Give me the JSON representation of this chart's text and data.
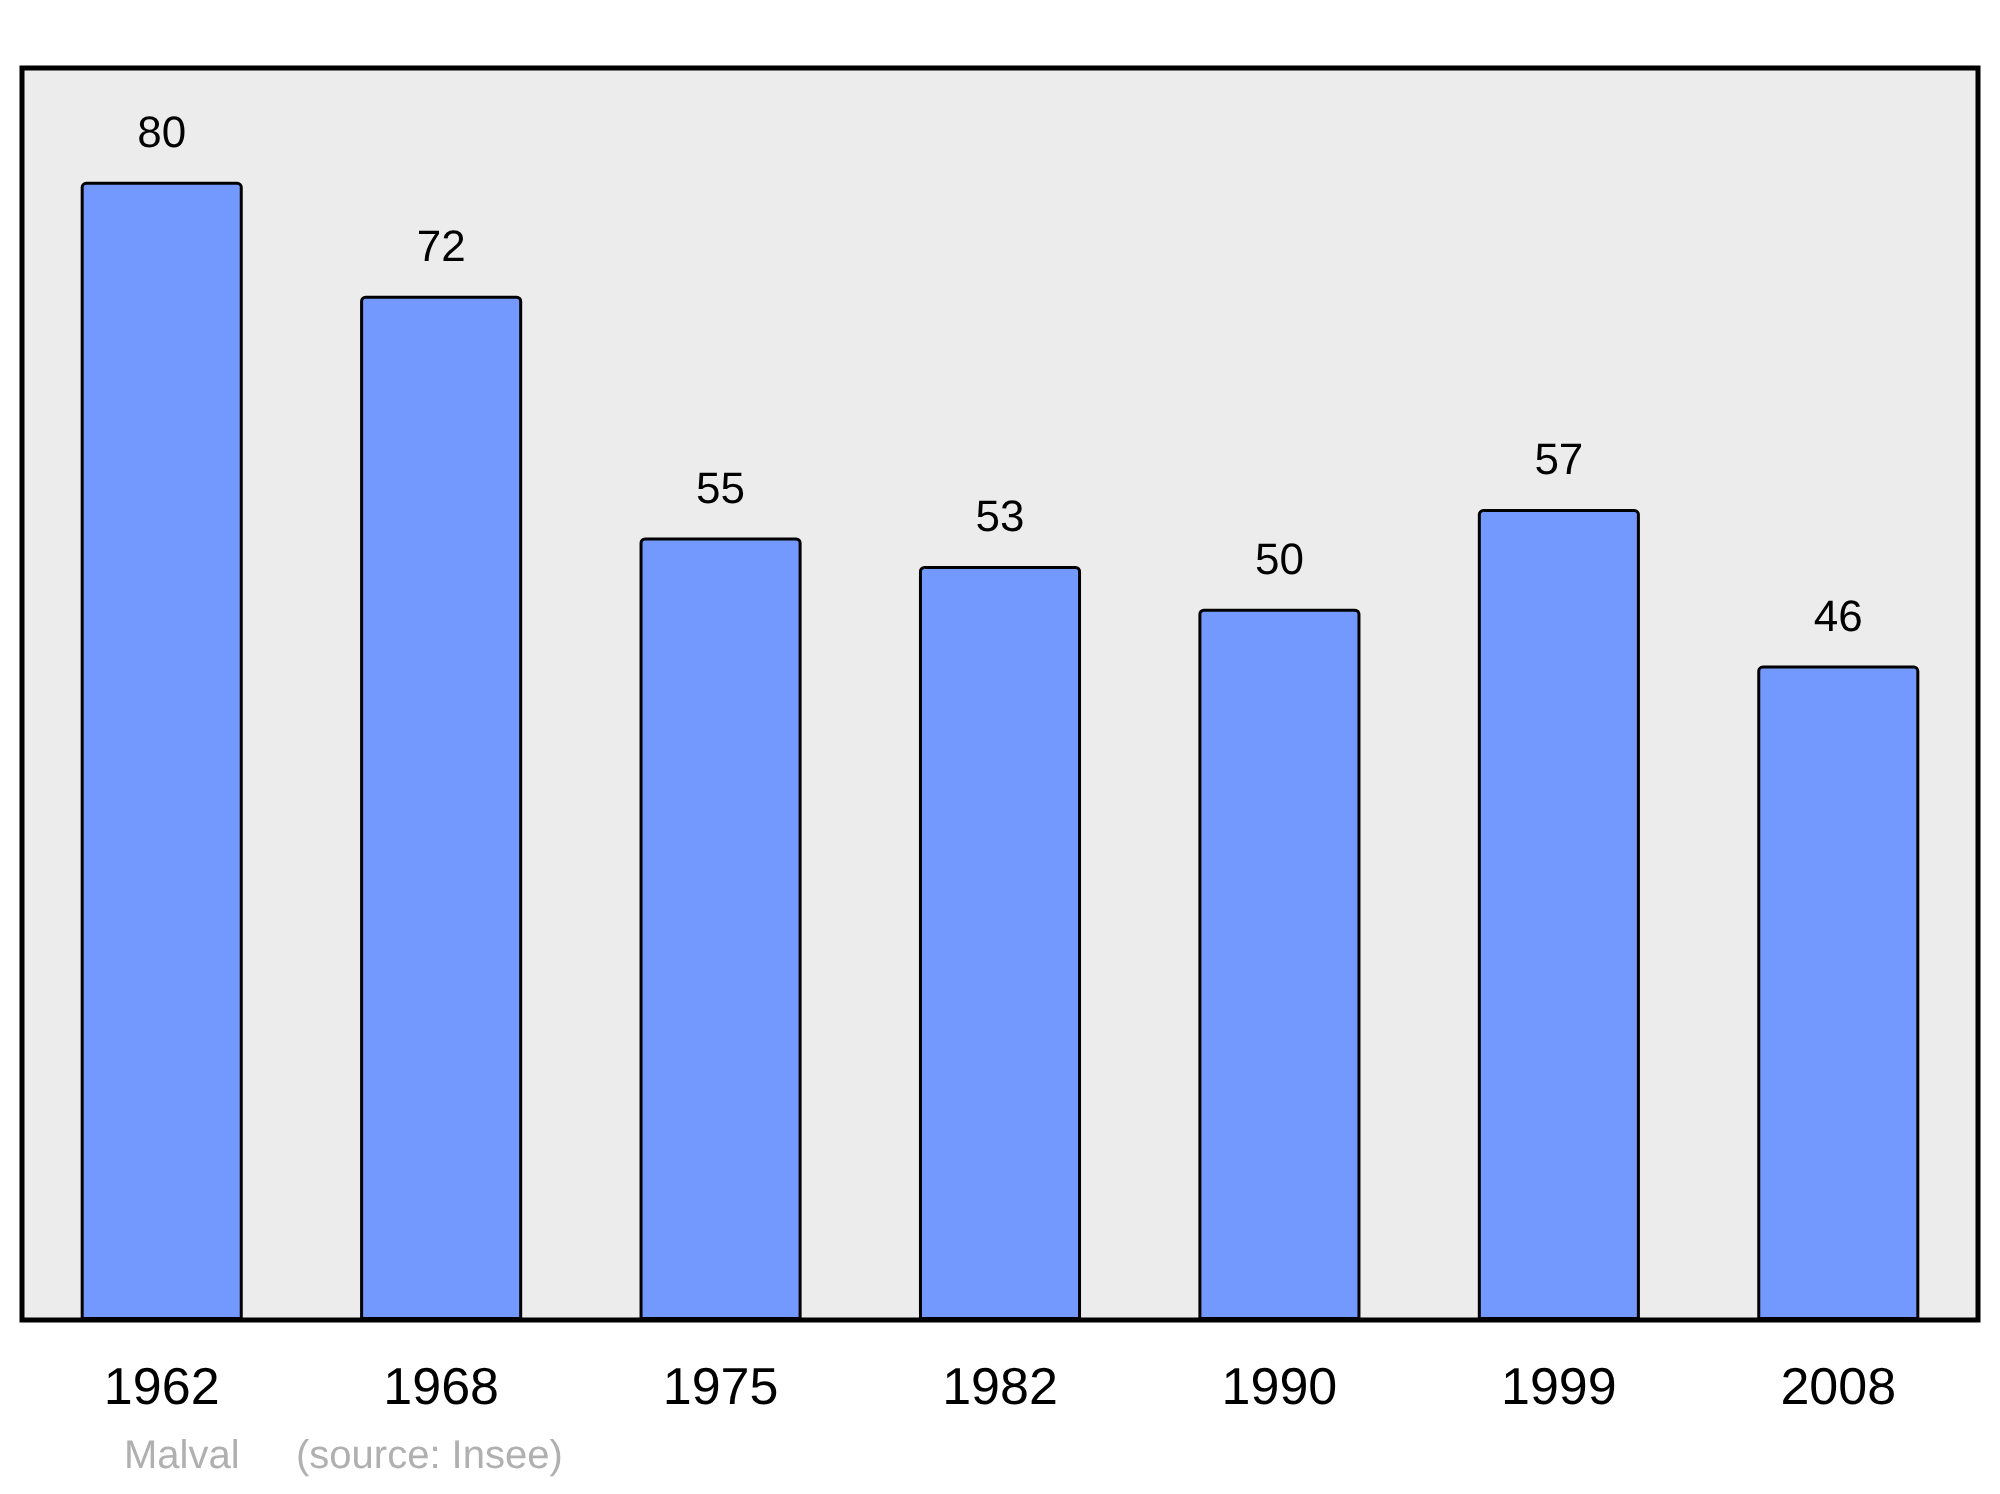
{
  "chart_data": {
    "type": "bar",
    "categories": [
      "1962",
      "1968",
      "1975",
      "1982",
      "1990",
      "1999",
      "2008"
    ],
    "values": [
      80,
      72,
      55,
      53,
      50,
      57,
      46
    ],
    "color": "#7399ff",
    "data_labels": true,
    "annotations": [
      "Malval",
      "(source: Insee)"
    ]
  }
}
